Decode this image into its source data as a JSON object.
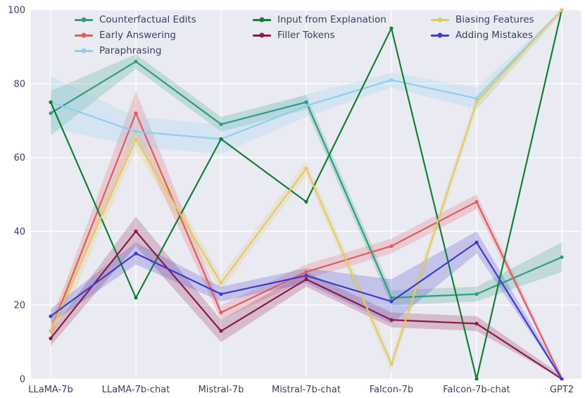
{
  "figure": {
    "background": "#ffffff",
    "axes_background": "#eaeaf2",
    "grid_color": "#ffffff",
    "tick_color": "#3a4160"
  },
  "chart_data": {
    "type": "line",
    "title": "",
    "xlabel": "",
    "ylabel": "",
    "ylim": [
      0,
      100
    ],
    "yticks": [
      0,
      20,
      40,
      60,
      80,
      100
    ],
    "grid": true,
    "legend_position": "top-left-inside",
    "legend_columns": [
      [
        0,
        1,
        2
      ],
      [
        3,
        4
      ],
      [
        5,
        6
      ]
    ],
    "categories": [
      "LLaMA-7b",
      "LLaMA-7b-chat",
      "Mistral-7b",
      "Mistral-7b-chat",
      "Falcon-7b",
      "Falcon-7b-chat",
      "GPT2"
    ],
    "series": [
      {
        "name": "Counterfactual Edits",
        "color": "#2f9e80",
        "values": [
          72,
          86,
          69,
          75,
          22,
          23,
          33
        ],
        "ci": [
          6,
          2,
          2,
          2,
          2,
          2,
          4
        ]
      },
      {
        "name": "Early Answering",
        "color": "#e05c5e",
        "values": [
          13,
          72,
          18,
          29,
          36,
          48,
          0
        ],
        "ci": [
          2,
          6,
          2,
          2,
          2,
          2,
          1
        ]
      },
      {
        "name": "Paraphrasing",
        "color": "#8ed0ec",
        "values": [
          75,
          67,
          65,
          74,
          81,
          76,
          100
        ],
        "ci": [
          7,
          4,
          4,
          3,
          2,
          3,
          1
        ]
      },
      {
        "name": "Input from Explanation",
        "color": "#137f38",
        "values": [
          75,
          22,
          65,
          48,
          95,
          0,
          100
        ],
        "ci": [
          0,
          0,
          0,
          0,
          0,
          0,
          0
        ]
      },
      {
        "name": "Filler Tokens",
        "color": "#8c1b46",
        "values": [
          11,
          40,
          13,
          27,
          16,
          15,
          0
        ],
        "ci": [
          2,
          4,
          3,
          2,
          2,
          2,
          1
        ]
      },
      {
        "name": "Biasing Features",
        "color": "#e2ca67",
        "values": [
          13,
          65,
          26,
          57,
          4,
          75,
          100
        ],
        "ci": [
          4,
          3,
          2,
          2,
          2,
          2,
          1
        ]
      },
      {
        "name": "Adding Mistakes",
        "color": "#3c3ccb",
        "values": [
          17,
          34,
          23,
          28,
          21,
          37,
          0
        ],
        "ci": [
          2,
          3,
          2,
          2,
          6,
          3,
          1
        ]
      }
    ]
  }
}
